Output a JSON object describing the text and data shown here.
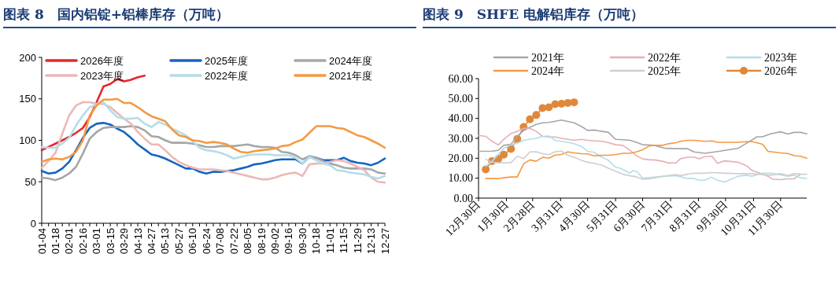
{
  "chart_data": [
    {
      "type": "line",
      "title": "图表 8　国内铝锭+铝棒库存（万吨）",
      "legend": "top",
      "ylim": [
        0,
        200
      ],
      "yticks": [
        0,
        50,
        100,
        150,
        200
      ],
      "categories": [
        "01-04",
        null,
        "01-18",
        null,
        "02-01",
        null,
        "02-16",
        null,
        "03-01",
        null,
        "03-15",
        null,
        "03-29",
        null,
        "04-13",
        null,
        "04-27",
        null,
        "05-13",
        null,
        "05-27",
        null,
        "06-10",
        null,
        "06-24",
        null,
        "07-08",
        null,
        "07-22",
        null,
        "08-05",
        null,
        "08-19",
        null,
        "09-02",
        null,
        "09-16",
        null,
        "09-30",
        null,
        "10-18",
        null,
        "11-01",
        null,
        "11-15",
        null,
        "11-29",
        null,
        "12-13",
        null,
        "12-27"
      ],
      "series": [
        {
          "name": "2026年度",
          "color": "#e8262b",
          "values": [
            88,
            92,
            96,
            100,
            104,
            109,
            115,
            128,
            146,
            165,
            168,
            174,
            171,
            173,
            176,
            178,
            null,
            null,
            null,
            null,
            null,
            null,
            null,
            null,
            null,
            null,
            null,
            null,
            null,
            null,
            null,
            null,
            null,
            null,
            null,
            null,
            null,
            null,
            null,
            null,
            null,
            null,
            null,
            null,
            null,
            null,
            null,
            null,
            null,
            null,
            null
          ]
        },
        {
          "name": "2025年度",
          "color": "#1565c0",
          "values": [
            63,
            60,
            61,
            66,
            74,
            88,
            103,
            115,
            120,
            121,
            119,
            114,
            110,
            103,
            95,
            89,
            83,
            81,
            78,
            74,
            70,
            66,
            66,
            62,
            60,
            62,
            62,
            63,
            64,
            66,
            68,
            71,
            72,
            74,
            76,
            77,
            77,
            77,
            72,
            80,
            79,
            76,
            76,
            76,
            79,
            75,
            73,
            72,
            70,
            73,
            78
          ]
        },
        {
          "name": "2024年度",
          "color": "#a6a6a6",
          "values": [
            55,
            54,
            52,
            55,
            60,
            68,
            84,
            102,
            110,
            115,
            116,
            116,
            116,
            117,
            116,
            112,
            105,
            104,
            100,
            97,
            97,
            97,
            96,
            94,
            92,
            92,
            93,
            93,
            93,
            94,
            95,
            93,
            92,
            92,
            91,
            86,
            85,
            82,
            77,
            81,
            79,
            75,
            72,
            70,
            67,
            66,
            66,
            66,
            65,
            61,
            60
          ]
        },
        {
          "name": "2023年度",
          "color": "#ebb8b8",
          "values": [
            67,
            75,
            85,
            108,
            130,
            142,
            146,
            146,
            144,
            144,
            140,
            133,
            126,
            120,
            110,
            102,
            95,
            95,
            88,
            80,
            74,
            70,
            67,
            65,
            65,
            65,
            64,
            63,
            61,
            59,
            57,
            55,
            53,
            53,
            55,
            58,
            60,
            61,
            57,
            71,
            72,
            72,
            74,
            76,
            75,
            72,
            68,
            64,
            55,
            50,
            49
          ]
        },
        {
          "name": "2022年度",
          "color": "#b4dde9",
          "values": [
            92,
            91,
            91,
            96,
            103,
            118,
            130,
            140,
            143,
            146,
            136,
            128,
            126,
            126,
            127,
            120,
            116,
            122,
            119,
            114,
            110,
            106,
            99,
            91,
            88,
            87,
            85,
            82,
            78,
            80,
            82,
            83,
            83,
            83,
            82,
            82,
            82,
            79,
            72,
            80,
            76,
            72,
            70,
            64,
            63,
            61,
            60,
            59,
            56,
            54,
            57
          ]
        },
        {
          "name": "2021年度",
          "color": "#f39a43",
          "values": [
            74,
            77,
            78,
            77,
            80,
            86,
            100,
            130,
            142,
            149,
            149,
            150,
            145,
            145,
            140,
            134,
            129,
            126,
            123,
            113,
            106,
            104,
            100,
            99,
            97,
            98,
            97,
            95,
            90,
            86,
            85,
            87,
            88,
            89,
            90,
            93,
            94,
            98,
            101,
            109,
            117,
            117,
            117,
            115,
            114,
            110,
            106,
            104,
            100,
            96,
            91
          ]
        }
      ]
    },
    {
      "type": "line",
      "title": "图表 9　SHFE 电解铝库存（万吨）",
      "legend": "top",
      "ylim": [
        0,
        60
      ],
      "yticks": [
        {
          "value": 0,
          "label": "0.00"
        },
        {
          "value": 10,
          "label": "10.00"
        },
        {
          "value": 20,
          "label": "20.00"
        },
        {
          "value": 30,
          "label": "30.00"
        },
        {
          "value": 40,
          "label": "40.00"
        },
        {
          "value": 50,
          "label": "50.00"
        },
        {
          "value": 60,
          "label": "60.00"
        }
      ],
      "xlim": [
        "2025-12-30",
        "2026-12-29"
      ],
      "xticks": [
        {
          "value": "2025-12-30",
          "label": "12月30日"
        },
        {
          "value": "2026-01-30",
          "label": "1月30日"
        },
        {
          "value": "2026-02-28",
          "label": "2月28日"
        },
        {
          "value": "2026-03-31",
          "label": "3月31日"
        },
        {
          "value": "2026-04-30",
          "label": "4月30日"
        },
        {
          "value": "2026-05-31",
          "label": "5月31日"
        },
        {
          "value": "2026-06-30",
          "label": "6月30日"
        },
        {
          "value": "2026-07-31",
          "label": "7月31日"
        },
        {
          "value": "2026-08-31",
          "label": "8月31日"
        },
        {
          "value": "2026-09-30",
          "label": "9月30日"
        },
        {
          "value": "2026-10-31",
          "label": "10月31日"
        },
        {
          "value": "2026-11-30",
          "label": "11月30日"
        }
      ],
      "series": [
        {
          "name": "2021年",
          "color": "#a6a6a6",
          "x": [
            "2025-12-30",
            "2026-01-14",
            "2026-01-21",
            "2026-01-27",
            "2026-02-04",
            "2026-02-11",
            "2026-02-18",
            "2026-02-25",
            "2026-03-04",
            "2026-03-11",
            "2026-03-18",
            "2026-03-25",
            "2026-04-01",
            "2026-04-08",
            "2026-04-15",
            "2026-04-23",
            "2026-04-30",
            "2026-05-07",
            "2026-05-16",
            "2026-05-23",
            "2026-05-31",
            "2026-06-08",
            "2026-06-16",
            "2026-06-23",
            "2026-06-30",
            "2026-07-13",
            "2026-07-25",
            "2026-08-06",
            "2026-08-19",
            "2026-08-26",
            "2026-09-07",
            "2026-09-15",
            "2026-09-24",
            "2026-10-06",
            "2026-10-14",
            "2026-10-23",
            "2026-11-04",
            "2026-11-10",
            "2026-11-19",
            "2026-11-30",
            "2026-12-08",
            "2026-12-15",
            "2026-12-22",
            "2026-12-29"
          ],
          "values": [
            23.5,
            23.6,
            24,
            26.5,
            27,
            31,
            34,
            35.5,
            37,
            37.8,
            38,
            38.6,
            39.2,
            38.5,
            37.8,
            36,
            34,
            34.2,
            33.5,
            33,
            29.5,
            29.3,
            29,
            28,
            26.8,
            26.5,
            25,
            24.8,
            24.8,
            23.2,
            22.5,
            23,
            23.6,
            24.5,
            25,
            27.5,
            30.8,
            30.8,
            32.3,
            33.3,
            32.2,
            33,
            33,
            32.3
          ]
        },
        {
          "name": "2022年",
          "color": "#e6b0b3",
          "x": [
            "2025-12-30",
            "2026-01-07",
            "2026-01-14",
            "2026-01-21",
            "2026-01-27",
            "2026-02-04",
            "2026-02-11",
            "2026-02-18",
            "2026-02-25",
            "2026-03-04",
            "2026-03-11",
            "2026-03-18",
            "2026-03-25",
            "2026-04-01",
            "2026-04-15",
            "2026-04-23",
            "2026-04-30",
            "2026-05-16",
            "2026-05-23",
            "2026-05-31",
            "2026-06-08",
            "2026-06-16",
            "2026-06-23",
            "2026-06-30",
            "2026-07-08",
            "2026-07-13",
            "2026-07-22",
            "2026-07-29",
            "2026-08-06",
            "2026-08-11",
            "2026-08-19",
            "2026-08-26",
            "2026-09-01",
            "2026-09-07",
            "2026-09-15",
            "2026-09-21",
            "2026-09-29",
            "2026-10-14",
            "2026-10-23",
            "2026-10-29",
            "2026-11-07",
            "2026-11-16",
            "2026-11-21",
            "2026-11-30",
            "2026-12-08",
            "2026-12-15",
            "2026-12-22"
          ],
          "values": [
            31.5,
            31,
            28.5,
            26.7,
            29.5,
            32.5,
            33.5,
            35,
            35,
            33.5,
            31,
            30.7,
            30.7,
            30,
            29,
            29.5,
            29,
            28.5,
            27.8,
            26.8,
            26.5,
            24,
            21.3,
            19.7,
            19.2,
            19.2,
            18.5,
            17.6,
            17.7,
            19.8,
            20.5,
            20.5,
            19.7,
            20.8,
            21,
            17.5,
            18.7,
            18,
            16.3,
            14,
            12.5,
            11,
            9.5,
            9.3,
            9.7,
            9.7,
            12
          ]
        },
        {
          "name": "2023年",
          "color": "#b4dde9",
          "x": [
            "2026-01-07",
            "2026-01-14",
            "2026-01-21",
            "2026-01-27",
            "2026-02-04",
            "2026-02-11",
            "2026-02-18",
            "2026-02-25",
            "2026-03-04",
            "2026-03-11",
            "2026-03-18",
            "2026-03-25",
            "2026-04-01",
            "2026-04-08",
            "2026-04-15",
            "2026-04-23",
            "2026-04-30",
            "2026-05-07",
            "2026-05-16",
            "2026-05-23",
            "2026-05-31",
            "2026-06-05",
            "2026-06-16",
            "2026-06-19",
            "2026-06-24",
            "2026-06-30",
            "2026-07-13",
            "2026-07-25",
            "2026-08-06",
            "2026-08-19",
            "2026-08-26",
            "2026-09-01",
            "2026-09-07",
            "2026-09-14",
            "2026-09-21",
            "2026-09-29",
            "2026-10-06",
            "2026-10-14",
            "2026-10-23",
            "2026-10-29",
            "2026-11-10",
            "2026-11-19",
            "2026-11-30",
            "2026-12-08",
            "2026-12-15",
            "2026-12-22",
            "2026-12-29"
          ],
          "values": [
            16,
            18.5,
            22,
            25,
            26.7,
            27.5,
            29,
            29.5,
            30,
            31,
            31.2,
            29,
            28.5,
            28,
            27.3,
            26,
            23.5,
            23,
            20.5,
            19,
            15.5,
            15,
            12.5,
            13.8,
            13.2,
            10,
            10.5,
            11,
            11.3,
            9.8,
            9.8,
            9,
            9,
            10.5,
            9,
            8,
            9.5,
            11,
            11.5,
            11,
            12.5,
            12.5,
            11.7,
            11,
            11.5,
            10.2,
            9.8
          ]
        },
        {
          "name": "2024年",
          "color": "#f39a43",
          "x": [
            "2026-01-07",
            "2026-01-21",
            "2026-01-27",
            "2026-02-04",
            "2026-02-11",
            "2026-02-18",
            "2026-02-25",
            "2026-03-04",
            "2026-03-11",
            "2026-03-18",
            "2026-03-25",
            "2026-04-01",
            "2026-04-08",
            "2026-04-15",
            "2026-04-23",
            "2026-04-30",
            "2026-05-07",
            "2026-05-16",
            "2026-05-23",
            "2026-05-31",
            "2026-06-08",
            "2026-06-16",
            "2026-06-23",
            "2026-06-30",
            "2026-07-08",
            "2026-07-13",
            "2026-07-22",
            "2026-07-29",
            "2026-08-06",
            "2026-08-11",
            "2026-08-19",
            "2026-08-26",
            "2026-09-07",
            "2026-09-15",
            "2026-09-21",
            "2026-09-29",
            "2026-10-14",
            "2026-10-23",
            "2026-10-30",
            "2026-11-10",
            "2026-11-16",
            "2026-11-30",
            "2026-12-08",
            "2026-12-15",
            "2026-12-22",
            "2026-12-29"
          ],
          "values": [
            9.8,
            9.8,
            10.2,
            10.6,
            10.6,
            17.2,
            19.2,
            18.5,
            20.5,
            20,
            21.6,
            21.9,
            23.2,
            22.7,
            22.3,
            22.2,
            21.2,
            21.5,
            21.5,
            21.8,
            22.5,
            22.5,
            23.2,
            24.3,
            26.3,
            26.5,
            26.5,
            27.3,
            27.8,
            28.5,
            29,
            29,
            28.5,
            28.7,
            28,
            28,
            28,
            28.3,
            28.3,
            27,
            23.5,
            22.7,
            22.4,
            21.3,
            21,
            20
          ]
        },
        {
          "name": "2025年",
          "color": "#cfcfcf",
          "x": [
            "2026-01-07",
            "2026-01-14",
            "2026-01-21",
            "2026-01-27",
            "2026-02-04",
            "2026-02-11",
            "2026-02-18",
            "2026-02-25",
            "2026-03-04",
            "2026-03-11",
            "2026-03-18",
            "2026-03-25",
            "2026-04-01",
            "2026-04-08",
            "2026-04-15",
            "2026-04-23",
            "2026-04-30",
            "2026-05-07",
            "2026-05-16",
            "2026-05-23",
            "2026-05-31",
            "2026-06-08",
            "2026-06-16",
            "2026-06-23",
            "2026-06-30",
            "2026-07-08",
            "2026-07-19",
            "2026-07-29",
            "2026-08-06",
            "2026-08-11",
            "2026-08-19",
            "2026-08-26",
            "2026-09-07",
            "2026-09-15",
            "2026-09-29",
            "2026-10-14",
            "2026-10-29",
            "2026-11-10",
            "2026-11-19",
            "2026-11-30",
            "2026-12-08",
            "2026-12-15",
            "2026-12-22",
            "2026-12-29"
          ],
          "values": [
            19.5,
            18,
            17.7,
            17.7,
            17.8,
            21,
            19.8,
            23.2,
            23.3,
            22.3,
            21.8,
            23.3,
            23.6,
            21.5,
            20.5,
            19,
            18,
            17.5,
            16.5,
            15,
            13.5,
            12,
            11.2,
            10.7,
            9.5,
            9.7,
            10.7,
            11.3,
            11.8,
            11.3,
            12,
            12.5,
            12.5,
            12.8,
            12.5,
            12.3,
            12.3,
            11.8,
            11.5,
            12.3,
            11.3,
            12.3,
            12,
            12
          ]
        },
        {
          "name": "2026年",
          "color": "#e0883a",
          "marker": "circle",
          "x": [
            "2026-01-07",
            "2026-01-14",
            "2026-01-21",
            "2026-01-27",
            "2026-02-04",
            "2026-02-11",
            "2026-02-18",
            "2026-02-25",
            "2026-03-04",
            "2026-03-11",
            "2026-03-18",
            "2026-03-25",
            "2026-04-01",
            "2026-04-08",
            "2026-04-15"
          ],
          "values": [
            14.4,
            18.6,
            19.7,
            21.8,
            24.7,
            29.7,
            35.7,
            39.6,
            41.7,
            45.2,
            45.6,
            47.2,
            47.4,
            47.8,
            48.1
          ]
        }
      ]
    }
  ]
}
